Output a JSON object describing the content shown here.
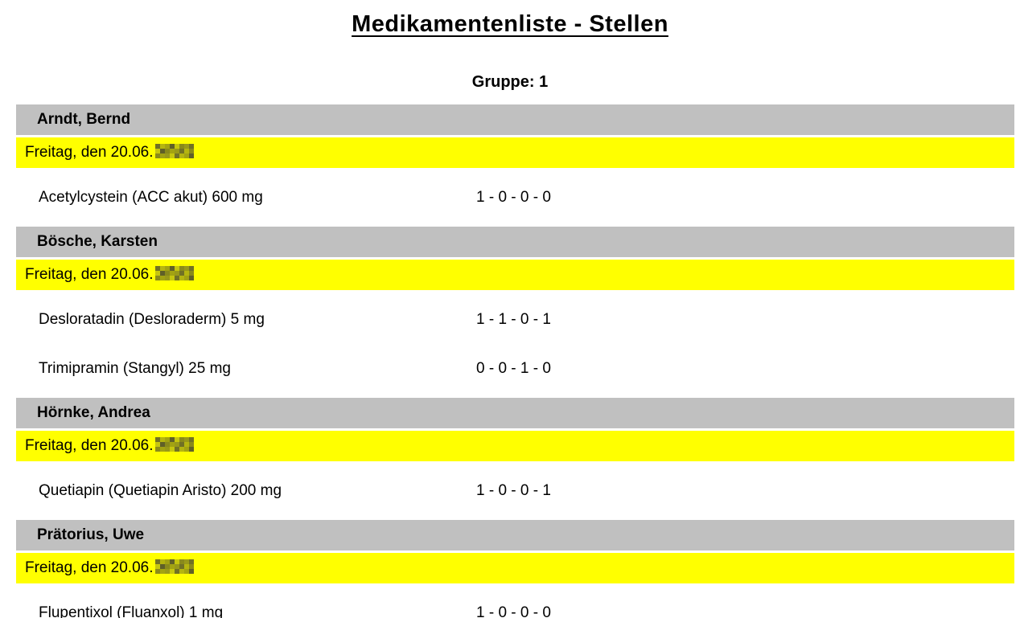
{
  "title": "Medikamentenliste - Stellen",
  "group_label": "Gruppe: 1",
  "colors": {
    "patient_header_bg": "#c0c0c0",
    "date_bar_bg": "#ffff00",
    "text": "#000000"
  },
  "date_note": "year portion of each date is pixelated/redacted in the screenshot",
  "sections": [
    {
      "patient": "Arndt, Bernd",
      "date_prefix": "Freitag, den 20.06.",
      "date_year_redacted": true,
      "medications": [
        {
          "name": "Acetylcystein (ACC akut) 600 mg",
          "schedule": "1 - 0 - 0 - 0"
        }
      ]
    },
    {
      "patient": "Bösche, Karsten",
      "date_prefix": "Freitag, den 20.06.",
      "date_year_redacted": true,
      "medications": [
        {
          "name": "Desloratadin (Desloraderm) 5 mg",
          "schedule": "1 - 1 - 0 - 1"
        },
        {
          "name": "Trimipramin (Stangyl) 25 mg",
          "schedule": "0 - 0 - 1 - 0"
        }
      ]
    },
    {
      "patient": "Hörnke, Andrea",
      "date_prefix": "Freitag, den 20.06.",
      "date_year_redacted": true,
      "medications": [
        {
          "name": "Quetiapin (Quetiapin Aristo) 200 mg",
          "schedule": "1 - 0 - 0 - 1"
        }
      ]
    },
    {
      "patient": "Prätorius, Uwe",
      "date_prefix": "Freitag, den 20.06.",
      "date_year_redacted": true,
      "medications": [
        {
          "name": "Flupentixol (Fluanxol) 1 mg",
          "schedule": "1 - 0 - 0 - 0"
        }
      ]
    }
  ]
}
